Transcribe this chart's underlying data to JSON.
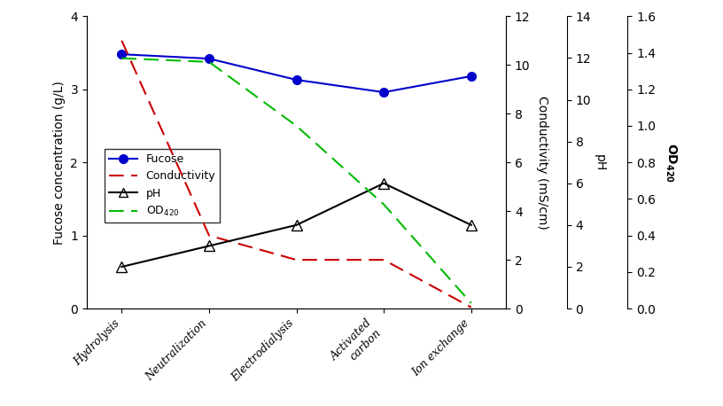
{
  "categories": [
    "Hydrolysis",
    "Neutralization",
    "Electrodialysis",
    "Activated\ncarbon",
    "Ion exchange"
  ],
  "x_positions": [
    0,
    1,
    2,
    3,
    4
  ],
  "fucose": [
    3.48,
    3.42,
    3.13,
    2.96,
    3.18
  ],
  "fucose_color": "#0000cc",
  "fucose_marker": "o",
  "conductivity": [
    11.0,
    3.0,
    2.0,
    2.0,
    0.05
  ],
  "conductivity_color": "#cc0000",
  "conductivity_ylim": [
    0,
    12
  ],
  "conductivity_yticks": [
    0,
    2,
    4,
    6,
    8,
    10,
    12
  ],
  "pH": [
    2.0,
    3.0,
    4.0,
    6.0,
    4.0
  ],
  "pH_color": "#000000",
  "pH_marker": "^",
  "pH_ylim": [
    0,
    14
  ],
  "pH_yticks": [
    0,
    2,
    4,
    6,
    8,
    10,
    12,
    14
  ],
  "OD420": [
    1.37,
    1.35,
    1.0,
    0.57,
    0.03
  ],
  "OD420_color": "#00bb00",
  "OD420_ylim": [
    0.0,
    1.6
  ],
  "OD420_yticks": [
    0.0,
    0.2,
    0.4,
    0.6,
    0.8,
    1.0,
    1.2,
    1.4,
    1.6
  ],
  "ylabel_left": "Fucose concentration (g/L)",
  "ylim_left": [
    0,
    4
  ],
  "ylim_left_ticks": [
    0,
    1,
    2,
    3,
    4
  ],
  "ylabel_conductivity": "Conductivity (mS/cm)",
  "ylabel_pH": "pH",
  "ylabel_OD": "OD420",
  "legend_labels": [
    "Fucose",
    "Conductivity",
    "pH",
    "OD420"
  ],
  "background_color": "#ffffff"
}
